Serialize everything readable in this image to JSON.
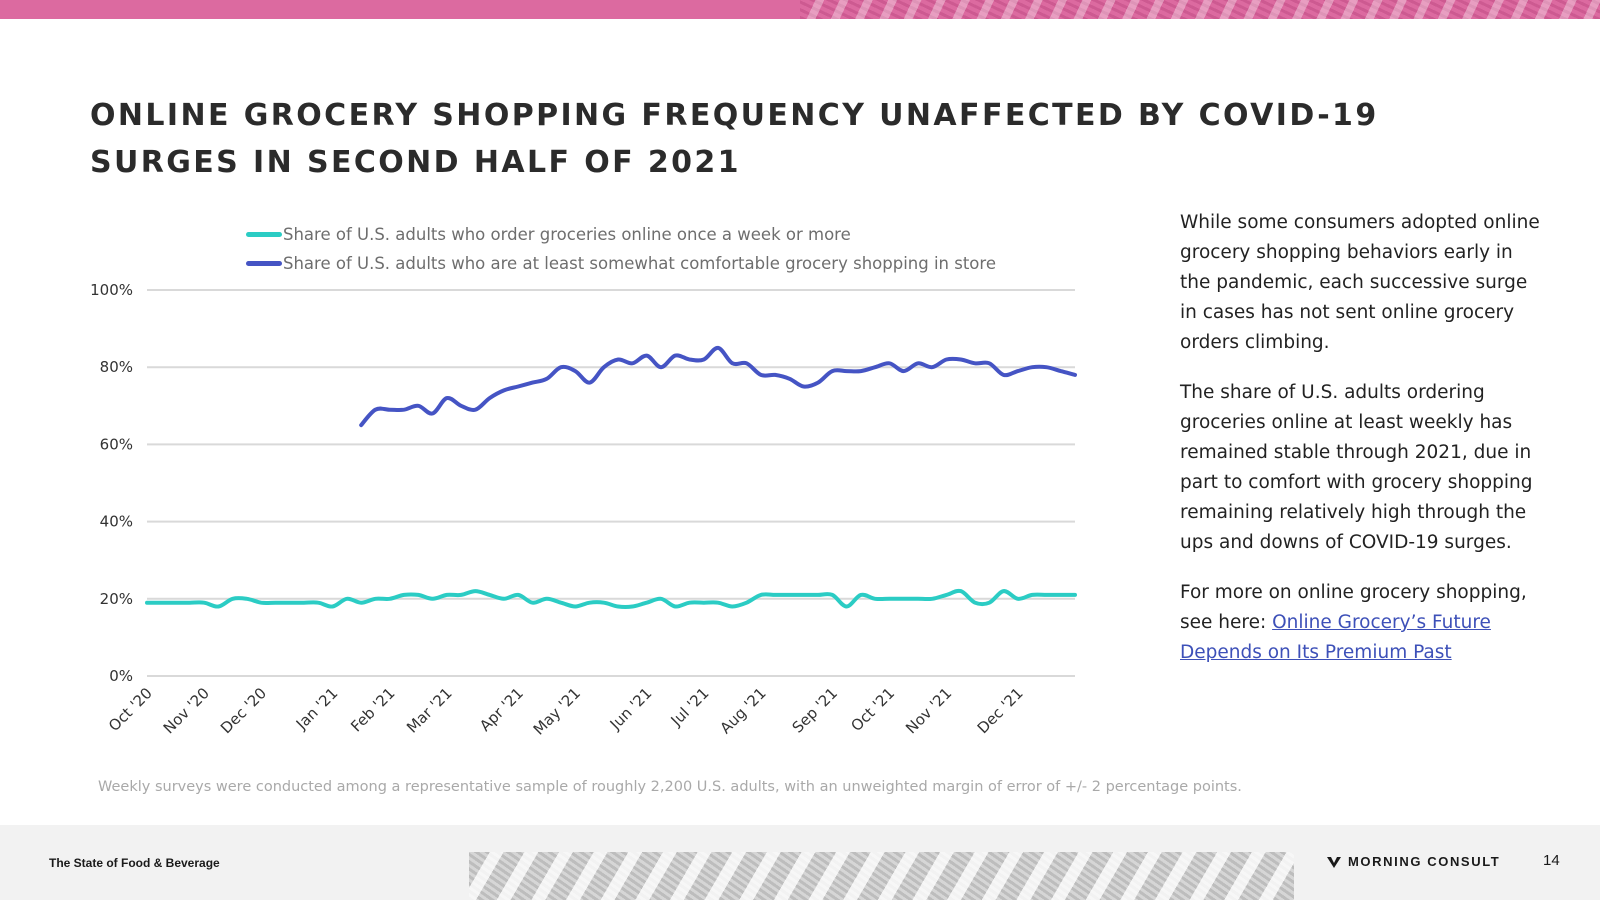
{
  "title": "ONLINE GROCERY SHOPPING FREQUENCY UNAFFECTED BY COVID-19 SURGES IN SECOND HALF OF 2021",
  "colors": {
    "pink": "#dc6aa0",
    "teal": "#2bccc4",
    "blue": "#4554c4",
    "grid": "#d9d9d9",
    "link": "#3d50b8"
  },
  "chart_data": {
    "type": "line",
    "title": "",
    "xlabel": "",
    "ylabel": "",
    "ylim": [
      0,
      100
    ],
    "y_ticks": [
      "0%",
      "20%",
      "40%",
      "60%",
      "80%",
      "100%"
    ],
    "y_tick_values": [
      0,
      20,
      40,
      60,
      80,
      100
    ],
    "x_tick_labels": [
      "Oct '20",
      "Nov '20",
      "Dec '20",
      "Jan '21",
      "Feb '21",
      "Mar '21",
      "Apr '21",
      "May '21",
      "Jun '21",
      "Jul '21",
      "Aug '21",
      "Sep '21",
      "Oct '21",
      "Nov '21",
      "Dec '21"
    ],
    "x_tick_weeks": [
      0,
      4,
      8,
      13,
      17,
      21,
      26,
      30,
      35,
      39,
      43,
      48,
      52,
      56,
      61
    ],
    "num_weeks": 66,
    "series": [
      {
        "name": "Share of U.S. adults who order groceries online once a week or more",
        "color": "#2bccc4",
        "start_week": 0,
        "values": [
          19,
          19,
          19,
          19,
          19,
          18,
          20,
          20,
          19,
          19,
          19,
          19,
          19,
          18,
          20,
          19,
          20,
          20,
          21,
          21,
          20,
          21,
          21,
          22,
          21,
          20,
          21,
          19,
          20,
          19,
          18,
          19,
          19,
          18,
          18,
          19,
          20,
          18,
          19,
          19,
          19,
          18,
          19,
          21,
          21,
          21,
          21,
          21,
          21,
          18,
          21,
          20,
          20,
          20,
          20,
          20,
          21,
          22,
          19,
          19,
          22,
          20,
          21,
          21,
          21,
          21
        ]
      },
      {
        "name": "Share of U.S. adults who are at least somewhat comfortable grocery shopping in store",
        "color": "#4554c4",
        "start_week": 15,
        "values": [
          65,
          69,
          69,
          69,
          70,
          68,
          72,
          70,
          69,
          72,
          74,
          75,
          76,
          77,
          80,
          79,
          76,
          80,
          82,
          81,
          83,
          80,
          83,
          82,
          82,
          85,
          81,
          81,
          78,
          78,
          77,
          75,
          76,
          79,
          79,
          79,
          80,
          81,
          79,
          81,
          80,
          82,
          82,
          81,
          81,
          78,
          79,
          80,
          80,
          79,
          78
        ]
      }
    ]
  },
  "legend": {
    "items": [
      {
        "label": "Share of U.S. adults who order groceries online once a week or more",
        "color": "#2bccc4"
      },
      {
        "label": "Share of U.S. adults who are at least somewhat comfortable grocery shopping in store",
        "color": "#4554c4"
      }
    ]
  },
  "side_text": {
    "p1": "While some consumers adopted online grocery shopping behaviors early in the pandemic, each successive surge in cases has not sent online grocery orders climbing.",
    "p2": "The share of U.S. adults ordering groceries online at least weekly has remained stable through 2021, due in part to comfort with grocery shopping remaining relatively high through the ups and downs of COVID-19 surges.",
    "p3_prefix": "For more on online grocery shopping, see here: ",
    "p3_link": "Online Grocery’s Future Depends on Its Premium Past"
  },
  "footnote": "Weekly surveys were conducted among a representative sample of roughly 2,200 U.S. adults, with an unweighted margin of error of +/- 2 percentage points.",
  "footer": {
    "left": "The State of Food & Beverage",
    "brand": "MORNING CONSULT",
    "page_number": "14"
  }
}
